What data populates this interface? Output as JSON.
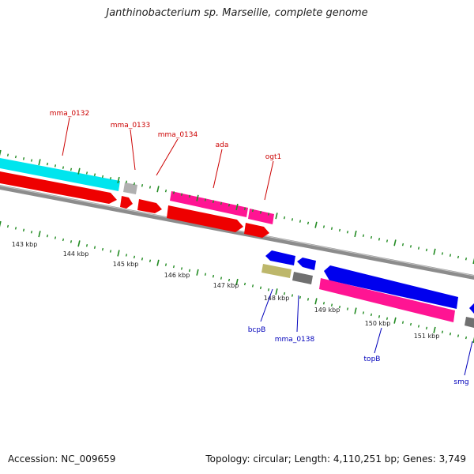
{
  "title": "Janthinobacterium sp. Marseille, complete genome",
  "footer": {
    "accession": "Accession: NC_009659",
    "stats": "Topology: circular; Length: 4,110,251 bp; Genes: 3,749"
  },
  "colors": {
    "cds_red": "#ff0000",
    "cds_blue": "#0000ff",
    "cyan": "#00ffff",
    "magenta": "#ff1493",
    "olive": "#bdb76b",
    "grey": "#808080",
    "label_red": "#cc0000",
    "label_blue": "#0000bb",
    "tick_green": "#228b22"
  },
  "ruler": {
    "ticks": [
      {
        "label": "143 kbp"
      },
      {
        "label": "144 kbp"
      },
      {
        "label": "145 kbp"
      },
      {
        "label": "146 kbp"
      },
      {
        "label": "147 kbp"
      },
      {
        "label": "148 kbp"
      },
      {
        "label": "149 kbp"
      },
      {
        "label": "150 kbp"
      },
      {
        "label": "151 kbp"
      }
    ]
  },
  "genes_forward": [
    {
      "label": "mma_0132"
    },
    {
      "label": "mma_0133"
    },
    {
      "label": "mma_0134"
    },
    {
      "label": "ada"
    },
    {
      "label": "ogt1"
    }
  ],
  "genes_reverse": [
    {
      "label": "bcpB"
    },
    {
      "label": "mma_0138"
    },
    {
      "label": "topB"
    },
    {
      "label": "smg"
    }
  ]
}
